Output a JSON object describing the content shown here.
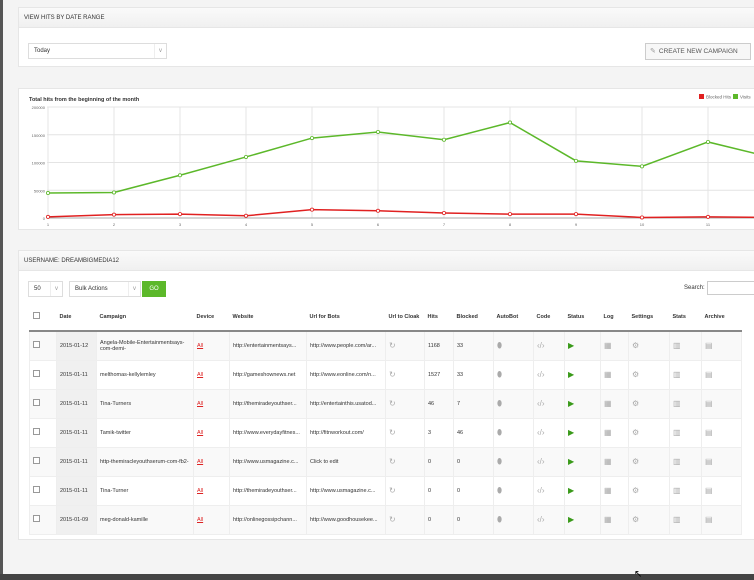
{
  "header": {
    "title": "VIEW HITS BY DATE RANGE",
    "range_select": "Today",
    "create_button": "CREATE NEW CAMPAIGN"
  },
  "chart_data": {
    "type": "line",
    "title": "Total hits from the beginning of the month",
    "x": [
      1,
      2,
      3,
      4,
      5,
      6,
      7,
      8,
      9,
      10,
      11,
      12
    ],
    "xticks": [
      "1",
      "2",
      "3",
      "4",
      "5",
      "6",
      "7",
      "8",
      "9",
      "10",
      "11"
    ],
    "yticks": [
      "0",
      "50000",
      "100000",
      "150000",
      "200000"
    ],
    "ylim": [
      0,
      200000
    ],
    "grid": true,
    "legend_position": "top-right",
    "series": [
      {
        "name": "Blocked Hits",
        "color": "#e02020",
        "values": [
          2000,
          6000,
          7000,
          4000,
          15000,
          13000,
          9000,
          7000,
          7000,
          1000,
          2000,
          1000
        ]
      },
      {
        "name": "Visits",
        "color": "#5cb82a",
        "values": [
          45000,
          46000,
          77000,
          110000,
          144000,
          155000,
          141000,
          172000,
          103000,
          93000,
          137000,
          108000
        ]
      }
    ]
  },
  "campaigns": {
    "title": "USERNAME: DREAMBIGMEDIA12",
    "per_page": "50",
    "bulk_actions": "Bulk Actions",
    "go_label": "GO",
    "search_label": "Search:",
    "columns": [
      "Date",
      "Campaign",
      "Device",
      "Website",
      "Url for Bots",
      "Url to Cloak",
      "Hits",
      "Blocked",
      "AutoBot",
      "Code",
      "Status",
      "Log",
      "Settings",
      "Stats",
      "Archive"
    ],
    "rows": [
      {
        "date": "2015-01-12",
        "campaign": "Angela-Mobile-Entertainmentsays-com-demi-",
        "device": "All",
        "website": "http://entertainmentsays...",
        "bots": "http://www.people.com/ar...",
        "hits": "1168",
        "blocked": "33"
      },
      {
        "date": "2015-01-11",
        "campaign": "melthomas-kellylemley",
        "device": "All",
        "website": "http://gameshownews.net",
        "bots": "http://www.eonline.com/n...",
        "hits": "1527",
        "blocked": "33"
      },
      {
        "date": "2015-01-11",
        "campaign": "Tina-Turners",
        "device": "All",
        "website": "http://themiradeyouthser...",
        "bots": "http://entertainthis.usatod...",
        "hits": "46",
        "blocked": "7"
      },
      {
        "date": "2015-01-11",
        "campaign": "Tamik-twitter",
        "device": "All",
        "website": "http://www.everydayfitnes...",
        "bots": "http://fitnworkout.com/",
        "hits": "3",
        "blocked": "46"
      },
      {
        "date": "2015-01-11",
        "campaign": "http-themiracleyouthserum-com-fb2-",
        "device": "All",
        "website": "http://www.usmagazine.c...",
        "bots": "Click to edit",
        "hits": "0",
        "blocked": "0"
      },
      {
        "date": "2015-01-11",
        "campaign": "Tina-Turner",
        "device": "All",
        "website": "http://themiradeyouthser...",
        "bots": "http://www.usmagazine.c...",
        "hits": "0",
        "blocked": "0"
      },
      {
        "date": "2015-01-09",
        "campaign": "meg-donald-kamille",
        "device": "All",
        "website": "http://onlinegossipchann...",
        "bots": "http://www.goodhousekee...",
        "hits": "0",
        "blocked": "0"
      }
    ]
  }
}
